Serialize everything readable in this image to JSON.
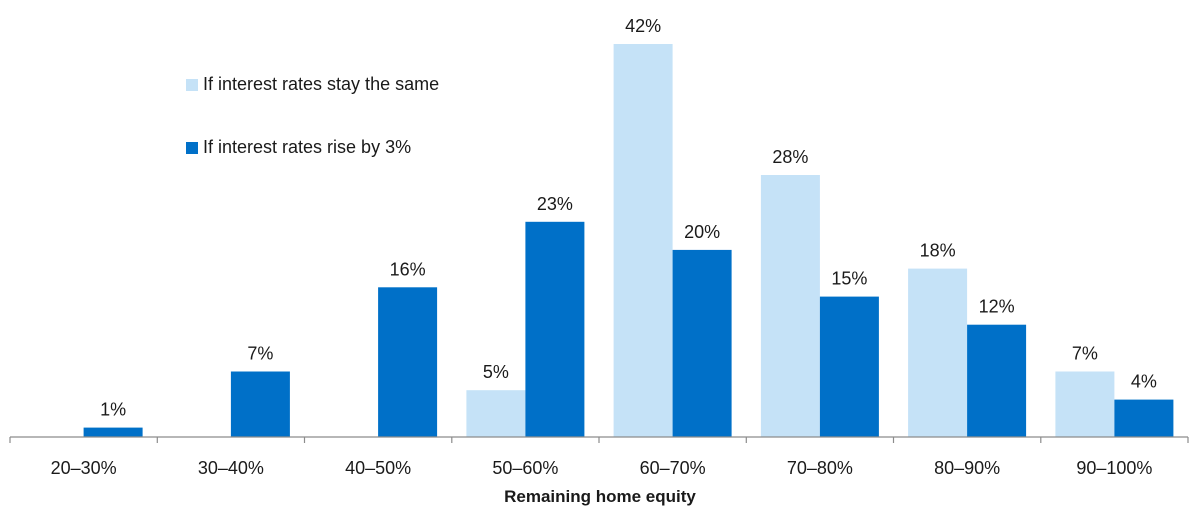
{
  "chart_data": {
    "type": "bar",
    "categories": [
      "20–30%",
      "30–40%",
      "40–50%",
      "50–60%",
      "60–70%",
      "70–80%",
      "80–90%",
      "90–100%"
    ],
    "series": [
      {
        "name": "If interest rates stay the same",
        "color": "#c5e2f7",
        "values": [
          0,
          0,
          0,
          5,
          42,
          28,
          18,
          7
        ],
        "labels": [
          "",
          "",
          "",
          "5%",
          "42%",
          "28%",
          "18%",
          "7%"
        ]
      },
      {
        "name": "If interest rates rise by 3%",
        "color": "#0070c8",
        "values": [
          1,
          7,
          16,
          23,
          20,
          15,
          12,
          4
        ],
        "labels": [
          "1%",
          "7%",
          "16%",
          "23%",
          "20%",
          "15%",
          "12%",
          "4%"
        ]
      }
    ],
    "title": "",
    "xlabel": "Remaining home equity",
    "ylabel": "",
    "ylim": [
      0,
      42
    ],
    "grid": false,
    "legend_position": "top-left"
  }
}
